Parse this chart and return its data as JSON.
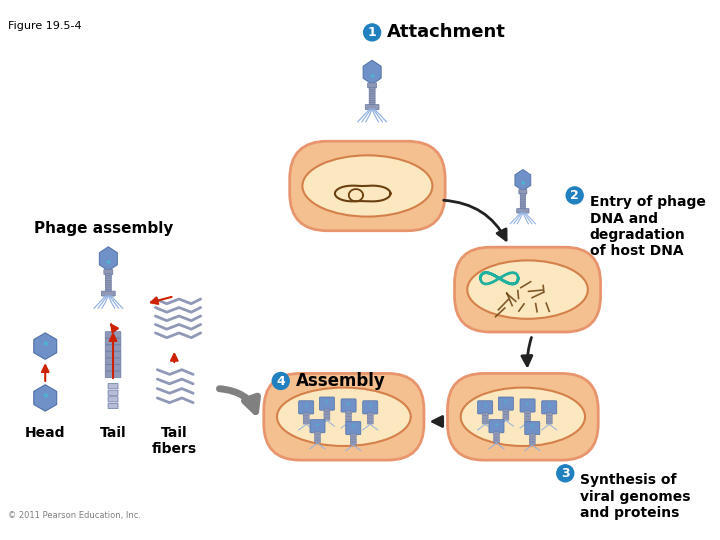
{
  "title": "Figure 19.5-4",
  "bg": "#ffffff",
  "step1_circle": "1",
  "step1_text": "Attachment",
  "step2_circle": "2",
  "step2_text": "Entry of phage\nDNA and\ndegradation\nof host DNA",
  "step3_circle": "3",
  "step3_text": "Synthesis of\nviral genomes\nand proteins",
  "step4_circle": "4",
  "step4_text": "Assembly",
  "phage_assembly_text": "Phage assembly",
  "head_text": "Head",
  "tail_text": "Tail",
  "tail_fibers_text": "Tail\nfibers",
  "copyright_text": "© 2011 Pearson Education, Inc.",
  "cell_outer": "#e8956e",
  "cell_fill": "#f5c090",
  "cell_inner_edge": "#d4804a",
  "cell_inner_fill": "#fce8c0",
  "dna_color": "#6b4010",
  "phage_blue": "#7090c8",
  "phage_dark": "#5070a8",
  "phage_light": "#90b0e0",
  "phage_cyan": "#40c0d0",
  "phage_white": "#d0e8f8",
  "tail_gray": "#9098b8",
  "tail_dark": "#6878a0",
  "circle_color": "#2080c0",
  "arrow_black": "#222222",
  "arrow_red": "#cc2200",
  "arrow_gray": "#808080",
  "label_fs": 11,
  "small_fs": 9,
  "title_fs": 8
}
